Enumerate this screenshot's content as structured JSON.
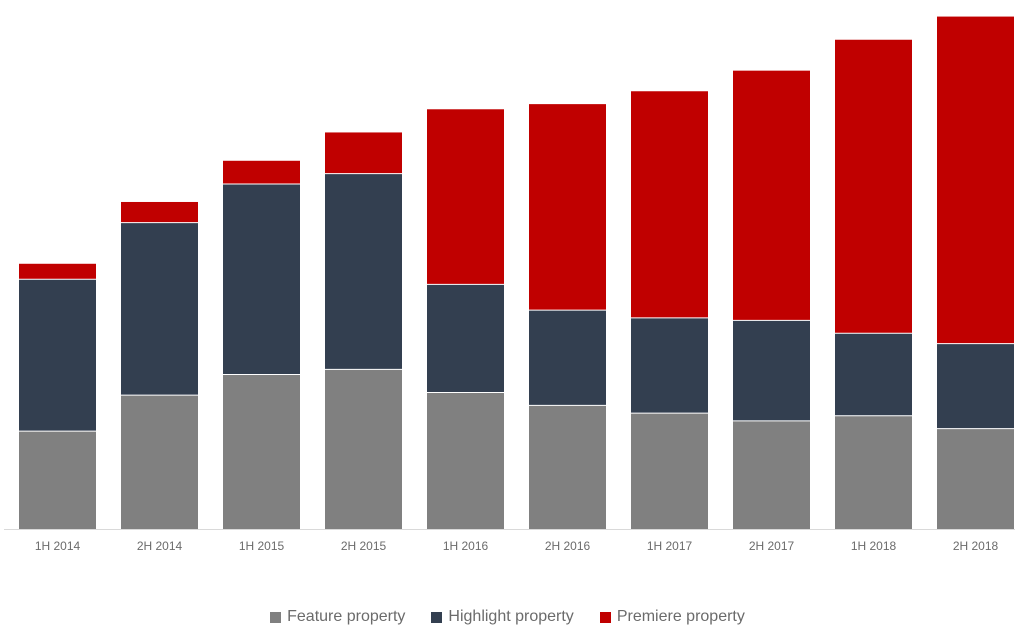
{
  "chart_data": {
    "type": "bar",
    "stacked": true,
    "categories": [
      "1H 2014",
      "2H 2014",
      "1H 2015",
      "2H 2015",
      "1H 2016",
      "2H 2016",
      "1H 2017",
      "2H 2017",
      "1H 2018",
      "2H 2018"
    ],
    "series": [
      {
        "name": "Feature property",
        "color": "#808080",
        "values": [
          19,
          26,
          30,
          31,
          26.5,
          24,
          22.5,
          21,
          22,
          19.5
        ]
      },
      {
        "name": "Highlight property",
        "color": "#333f50",
        "values": [
          29.5,
          33.5,
          37,
          38,
          21,
          18.5,
          18.5,
          19.5,
          16,
          16.5
        ]
      },
      {
        "name": "Premiere property",
        "color": "#c00000",
        "values": [
          3,
          4,
          4.5,
          8,
          34,
          40,
          44,
          48.5,
          57,
          63.5
        ]
      }
    ],
    "ylim": [
      0,
      100
    ],
    "grid": false,
    "y_axis_visible": false,
    "legend_position": "bottom",
    "title": "",
    "xlabel": "",
    "ylabel": ""
  }
}
